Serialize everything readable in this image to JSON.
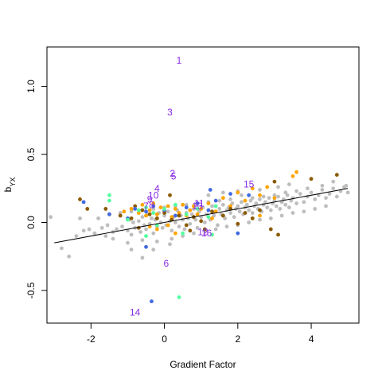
{
  "chart_data": {
    "type": "scatter",
    "title": "",
    "xlabel": "Gradient Factor",
    "ylabel_main": "b",
    "ylabel_sub": "YX",
    "xlim": [
      -3.2,
      5.3
    ],
    "ylim": [
      -0.74,
      1.29
    ],
    "xticks": [
      -2,
      0,
      2,
      4
    ],
    "xtick_labels": [
      "-2",
      "0",
      "2",
      "4"
    ],
    "yticks": [
      -0.5,
      0.0,
      0.5,
      1.0
    ],
    "ytick_labels": [
      "-0.5",
      "0.0",
      "0.5",
      "1.0"
    ],
    "grid": false,
    "legend": "none",
    "colors": {
      "gray": "#bebebe",
      "orange": "#ffa500",
      "brown": "#8b5a00",
      "blue": "#4169e1",
      "green": "#54ff9f",
      "label": "#8a2be2",
      "line": "#000000"
    },
    "regression_line": {
      "x": [
        -3.0,
        5.0
      ],
      "y": [
        -0.15,
        0.25
      ]
    },
    "labeled_points": [
      {
        "label": "1",
        "x": 0.4,
        "y": 1.19
      },
      {
        "label": "3",
        "x": 0.15,
        "y": 0.81
      },
      {
        "label": "2",
        "x": 0.22,
        "y": 0.36
      },
      {
        "label": "5",
        "x": 0.25,
        "y": 0.34
      },
      {
        "label": "4",
        "x": -0.2,
        "y": 0.25
      },
      {
        "label": "10",
        "x": -0.3,
        "y": 0.2
      },
      {
        "label": "9",
        "x": -0.4,
        "y": 0.17
      },
      {
        "label": "8",
        "x": -0.35,
        "y": 0.13
      },
      {
        "label": "7",
        "x": -0.5,
        "y": 0.12
      },
      {
        "label": "15",
        "x": 2.3,
        "y": 0.28
      },
      {
        "label": "11",
        "x": 0.95,
        "y": 0.14
      },
      {
        "label": "13",
        "x": 0.9,
        "y": 0.12
      },
      {
        "label": "12",
        "x": 1.05,
        "y": -0.07
      },
      {
        "label": "16",
        "x": 1.15,
        "y": -0.08
      },
      {
        "label": "6",
        "x": 0.05,
        "y": -0.3
      },
      {
        "label": "14",
        "x": -0.8,
        "y": -0.66
      }
    ],
    "series": [
      {
        "color": "gray",
        "points": [
          [
            -3.1,
            0.04
          ],
          [
            -2.8,
            -0.19
          ],
          [
            -2.6,
            -0.25
          ],
          [
            -2.4,
            -0.1
          ],
          [
            -2.3,
            0.03
          ],
          [
            -2.2,
            -0.06
          ],
          [
            -2.05,
            -0.05
          ],
          [
            -1.9,
            -0.08
          ],
          [
            -1.8,
            0.03
          ],
          [
            -1.7,
            -0.04
          ],
          [
            -1.6,
            -0.1
          ],
          [
            -1.55,
            -0.02
          ],
          [
            -1.4,
            -0.07
          ],
          [
            -1.3,
            -0.05
          ],
          [
            -1.2,
            0.05
          ],
          [
            -1.15,
            -0.03
          ],
          [
            -1.0,
            -0.06
          ],
          [
            -0.95,
            0.02
          ],
          [
            -0.9,
            -0.09
          ],
          [
            -0.85,
            0.0
          ],
          [
            -0.8,
            -0.04
          ],
          [
            -0.7,
            0.01
          ],
          [
            -0.65,
            -0.07
          ],
          [
            -0.6,
            0.04
          ],
          [
            -0.55,
            -0.02
          ],
          [
            -0.5,
            -0.05
          ],
          [
            -0.45,
            0.06
          ],
          [
            -0.4,
            -0.01
          ],
          [
            -0.35,
            0.03
          ],
          [
            -0.3,
            -0.08
          ],
          [
            -0.25,
            0.02
          ],
          [
            -0.2,
            -0.03
          ],
          [
            -0.15,
            0.07
          ],
          [
            -0.1,
            0.0
          ],
          [
            -0.05,
            -0.04
          ],
          [
            0.0,
            0.05
          ],
          [
            0.05,
            -0.02
          ],
          [
            0.1,
            0.08
          ],
          [
            0.15,
            0.01
          ],
          [
            0.2,
            -0.06
          ],
          [
            0.25,
            0.04
          ],
          [
            0.3,
            0.0
          ],
          [
            0.35,
            0.09
          ],
          [
            0.4,
            -0.03
          ],
          [
            0.45,
            0.05
          ],
          [
            0.5,
            0.02
          ],
          [
            0.55,
            -0.05
          ],
          [
            0.6,
            0.07
          ],
          [
            0.65,
            0.03
          ],
          [
            0.7,
            -0.01
          ],
          [
            0.75,
            0.06
          ],
          [
            0.8,
            0.1
          ],
          [
            0.85,
            0.02
          ],
          [
            0.9,
            -0.04
          ],
          [
            0.95,
            0.08
          ],
          [
            1.0,
            0.04
          ],
          [
            1.05,
            0.11
          ],
          [
            1.1,
            0.0
          ],
          [
            1.15,
            0.06
          ],
          [
            1.2,
            0.09
          ],
          [
            1.25,
            0.02
          ],
          [
            1.3,
            0.12
          ],
          [
            1.35,
            0.05
          ],
          [
            1.4,
            0.08
          ],
          [
            1.45,
            -0.02
          ],
          [
            1.5,
            0.1
          ],
          [
            1.55,
            0.06
          ],
          [
            1.6,
            0.13
          ],
          [
            1.65,
            0.03
          ],
          [
            1.7,
            0.09
          ],
          [
            1.75,
            0.11
          ],
          [
            1.8,
            0.07
          ],
          [
            1.85,
            0.14
          ],
          [
            1.9,
            0.04
          ],
          [
            1.95,
            0.1
          ],
          [
            2.0,
            0.12
          ],
          [
            2.05,
            0.08
          ],
          [
            2.1,
            0.15
          ],
          [
            2.15,
            0.06
          ],
          [
            2.2,
            0.11
          ],
          [
            2.25,
            0.13
          ],
          [
            2.3,
            0.09
          ],
          [
            2.35,
            0.16
          ],
          [
            2.4,
            0.07
          ],
          [
            2.45,
            0.12
          ],
          [
            2.5,
            0.14
          ],
          [
            2.55,
            0.1
          ],
          [
            2.6,
            0.17
          ],
          [
            2.65,
            0.08
          ],
          [
            2.7,
            0.13
          ],
          [
            2.75,
            0.15
          ],
          [
            2.8,
            0.11
          ],
          [
            2.85,
            0.18
          ],
          [
            2.9,
            0.09
          ],
          [
            2.95,
            0.14
          ],
          [
            3.0,
            0.16
          ],
          [
            3.05,
            0.12
          ],
          [
            3.1,
            0.19
          ],
          [
            3.15,
            0.1
          ],
          [
            3.2,
            0.15
          ],
          [
            3.25,
            0.17
          ],
          [
            3.3,
            0.13
          ],
          [
            3.35,
            0.2
          ],
          [
            3.4,
            0.11
          ],
          [
            3.45,
            0.16
          ],
          [
            3.5,
            0.18
          ],
          [
            3.6,
            0.14
          ],
          [
            3.7,
            0.21
          ],
          [
            3.8,
            0.15
          ],
          [
            3.9,
            0.19
          ],
          [
            4.0,
            0.22
          ],
          [
            4.1,
            0.17
          ],
          [
            4.2,
            0.2
          ],
          [
            4.3,
            0.24
          ],
          [
            4.4,
            0.18
          ],
          [
            4.5,
            0.21
          ],
          [
            4.6,
            0.25
          ],
          [
            4.7,
            0.19
          ],
          [
            4.8,
            0.23
          ],
          [
            4.9,
            0.26
          ],
          [
            5.0,
            0.22
          ],
          [
            4.95,
            0.27
          ],
          [
            4.6,
            0.3
          ],
          [
            4.3,
            0.27
          ],
          [
            3.9,
            0.25
          ],
          [
            3.6,
            0.23
          ],
          [
            3.3,
            0.22
          ],
          [
            3.0,
            0.2
          ],
          [
            2.7,
            0.19
          ],
          [
            2.4,
            0.18
          ],
          [
            2.1,
            0.2
          ],
          [
            1.8,
            0.17
          ],
          [
            1.5,
            0.16
          ],
          [
            1.2,
            0.15
          ],
          [
            0.9,
            0.14
          ],
          [
            0.6,
            0.13
          ],
          [
            0.3,
            0.12
          ],
          [
            0.0,
            0.11
          ],
          [
            -0.3,
            0.1
          ],
          [
            -0.6,
            0.09
          ],
          [
            -0.9,
            0.08
          ],
          [
            -1.2,
            0.07
          ],
          [
            -1.5,
            0.06
          ],
          [
            0.5,
            -0.1
          ],
          [
            0.8,
            -0.08
          ],
          [
            1.1,
            -0.06
          ],
          [
            1.4,
            -0.05
          ],
          [
            1.7,
            -0.03
          ],
          [
            2.0,
            -0.02
          ],
          [
            2.3,
            0.0
          ],
          [
            2.6,
            0.02
          ],
          [
            2.9,
            0.03
          ],
          [
            3.2,
            0.05
          ],
          [
            3.5,
            0.07
          ],
          [
            3.8,
            0.08
          ],
          [
            4.1,
            0.1
          ],
          [
            4.4,
            0.12
          ],
          [
            -0.2,
            -0.14
          ],
          [
            0.2,
            -0.12
          ],
          [
            -0.6,
            -0.13
          ],
          [
            -1.0,
            -0.15
          ],
          [
            -1.4,
            -0.12
          ],
          [
            -0.6,
            -0.26
          ],
          [
            -0.9,
            -0.2
          ],
          [
            -0.3,
            -0.2
          ],
          [
            0.15,
            -0.16
          ],
          [
            1.2,
            0.2
          ],
          [
            1.6,
            0.22
          ],
          [
            2.0,
            0.23
          ],
          [
            2.6,
            0.24
          ],
          [
            3.1,
            0.26
          ],
          [
            3.4,
            0.28
          ]
        ]
      },
      {
        "color": "orange",
        "points": [
          [
            -1.5,
            0.06
          ],
          [
            -1.1,
            0.08
          ],
          [
            -0.9,
            0.1
          ],
          [
            -0.7,
            0.07
          ],
          [
            -0.6,
            0.13
          ],
          [
            -0.5,
            0.05
          ],
          [
            -0.4,
            0.09
          ],
          [
            -0.3,
            0.14
          ],
          [
            -0.2,
            0.06
          ],
          [
            -0.1,
            0.11
          ],
          [
            0.0,
            0.08
          ],
          [
            0.1,
            0.12
          ],
          [
            0.2,
            0.04
          ],
          [
            0.3,
            0.1
          ],
          [
            0.4,
            0.07
          ],
          [
            0.5,
            0.13
          ],
          [
            0.6,
            0.05
          ],
          [
            0.7,
            0.09
          ],
          [
            0.8,
            0.12
          ],
          [
            0.9,
            0.06
          ],
          [
            1.0,
            0.1
          ],
          [
            1.2,
            0.14
          ],
          [
            1.4,
            0.08
          ],
          [
            1.6,
            0.18
          ],
          [
            1.8,
            0.12
          ],
          [
            2.0,
            0.22
          ],
          [
            2.2,
            0.16
          ],
          [
            2.4,
            0.25
          ],
          [
            2.6,
            0.2
          ],
          [
            2.8,
            0.26
          ],
          [
            3.0,
            0.18
          ],
          [
            3.5,
            0.34
          ],
          [
            3.6,
            0.37
          ],
          [
            -0.2,
            -0.05
          ],
          [
            0.3,
            -0.08
          ],
          [
            1.3,
            0.03
          ],
          [
            2.6,
            0.05
          ],
          [
            -0.4,
            -0.03
          ],
          [
            0.1,
            -0.02
          ]
        ]
      },
      {
        "color": "brown",
        "points": [
          [
            -2.3,
            0.17
          ],
          [
            -2.1,
            0.1
          ],
          [
            -1.6,
            0.1
          ],
          [
            -1.2,
            0.05
          ],
          [
            -0.9,
            0.03
          ],
          [
            -0.8,
            0.12
          ],
          [
            -0.6,
            0.09
          ],
          [
            -0.4,
            0.06
          ],
          [
            -0.2,
            0.03
          ],
          [
            0.0,
            0.07
          ],
          [
            0.2,
            0.02
          ],
          [
            0.4,
            0.05
          ],
          [
            0.6,
            -0.02
          ],
          [
            0.8,
            0.04
          ],
          [
            1.0,
            0.01
          ],
          [
            1.3,
            0.08
          ],
          [
            1.6,
            0.05
          ],
          [
            1.8,
            0.1
          ],
          [
            2.0,
            -0.01
          ],
          [
            2.2,
            0.07
          ],
          [
            2.4,
            0.03
          ],
          [
            2.6,
            0.09
          ],
          [
            2.9,
            -0.05
          ],
          [
            3.0,
            0.3
          ],
          [
            4.0,
            0.32
          ],
          [
            4.7,
            0.35
          ],
          [
            -0.7,
            -0.04
          ],
          [
            0.7,
            -0.06
          ],
          [
            1.1,
            -0.05
          ],
          [
            3.1,
            -0.09
          ],
          [
            0.15,
            0.2
          ]
        ]
      },
      {
        "color": "blue",
        "points": [
          [
            -2.2,
            0.15
          ],
          [
            -1.5,
            0.06
          ],
          [
            -1.0,
            0.03
          ],
          [
            -0.8,
            0.1
          ],
          [
            -0.5,
            0.08
          ],
          [
            -0.3,
            0.12
          ],
          [
            0.0,
            0.09
          ],
          [
            0.3,
            0.05
          ],
          [
            0.6,
            0.11
          ],
          [
            0.9,
            0.14
          ],
          [
            1.2,
            0.09
          ],
          [
            1.4,
            0.16
          ],
          [
            1.8,
            0.21
          ],
          [
            2.3,
            0.2
          ],
          [
            -0.35,
            -0.58
          ],
          [
            -0.5,
            -0.18
          ],
          [
            1.25,
            0.24
          ],
          [
            2.0,
            -0.08
          ]
        ]
      },
      {
        "color": "green",
        "points": [
          [
            -1.5,
            0.2
          ],
          [
            -1.5,
            0.16
          ],
          [
            -1.0,
            0.02
          ],
          [
            -0.7,
            0.09
          ],
          [
            -0.5,
            0.11
          ],
          [
            -0.3,
            0.07
          ],
          [
            0.0,
            0.1
          ],
          [
            0.3,
            0.13
          ],
          [
            0.6,
            0.06
          ],
          [
            0.9,
            0.1
          ],
          [
            1.2,
            0.04
          ],
          [
            1.4,
            0.12
          ],
          [
            1.3,
            -0.09
          ],
          [
            0.4,
            -0.55
          ],
          [
            -0.5,
            -0.1
          ],
          [
            -0.2,
            -0.02
          ],
          [
            0.5,
            -0.08
          ]
        ]
      }
    ]
  }
}
